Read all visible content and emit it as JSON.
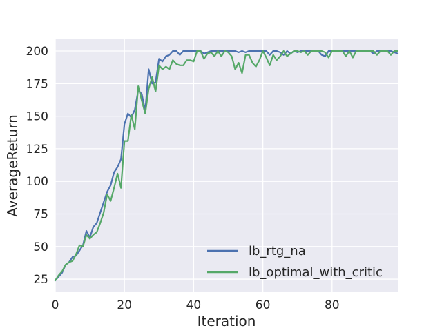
{
  "chart_data": {
    "type": "line",
    "xlabel": "Iteration",
    "ylabel": "AverageReturn",
    "xlim": [
      0,
      99
    ],
    "ylim": [
      15,
      209
    ],
    "xticks": [
      0,
      20,
      40,
      60,
      80
    ],
    "yticks": [
      25,
      50,
      75,
      100,
      125,
      150,
      175,
      200
    ],
    "grid": true,
    "legend_position": "bottom-right",
    "series": [
      {
        "name": "lb_rtg_na",
        "color": "#4c72b0",
        "values": [
          24,
          27,
          30,
          36,
          38,
          42,
          43,
          47,
          51,
          62,
          57,
          65,
          68,
          76,
          84,
          92,
          97,
          107,
          111,
          117,
          144,
          152,
          149,
          155,
          170,
          167,
          154,
          186,
          175,
          176,
          194,
          192,
          196,
          197,
          200,
          200,
          197,
          200,
          200,
          200,
          200,
          200,
          200,
          198,
          199,
          200,
          200,
          200,
          200,
          200,
          200,
          200,
          200,
          199,
          200,
          199,
          200,
          200,
          200,
          200,
          200,
          200,
          197,
          200,
          200,
          199,
          197,
          200,
          198,
          200,
          199,
          200,
          200,
          200,
          200,
          200,
          200,
          197,
          196,
          200,
          200,
          200,
          200,
          200,
          200,
          200,
          200,
          200,
          200,
          200,
          200,
          200,
          198,
          200,
          200,
          200,
          200,
          200,
          199,
          198
        ]
      },
      {
        "name": "lb_optimal_with_critic",
        "color": "#55a868",
        "values": [
          24,
          28,
          31,
          36,
          38,
          39,
          44,
          51,
          50,
          59,
          56,
          59,
          61,
          68,
          76,
          90,
          85,
          95,
          106,
          95,
          131,
          131,
          151,
          140,
          173,
          162,
          152,
          171,
          180,
          169,
          189,
          186,
          188,
          186,
          193,
          190,
          189,
          189,
          193,
          193,
          192,
          200,
          200,
          194,
          198,
          199,
          196,
          200,
          196,
          200,
          199,
          196,
          186,
          191,
          183,
          197,
          197,
          191,
          188,
          193,
          200,
          195,
          189,
          197,
          193,
          196,
          200,
          196,
          198,
          200,
          200,
          199,
          200,
          197,
          200,
          200,
          200,
          200,
          199,
          195,
          200,
          200,
          200,
          200,
          196,
          200,
          195,
          200,
          200,
          200,
          200,
          200,
          200,
          197,
          200,
          200,
          200,
          197,
          200,
          200
        ]
      }
    ]
  }
}
